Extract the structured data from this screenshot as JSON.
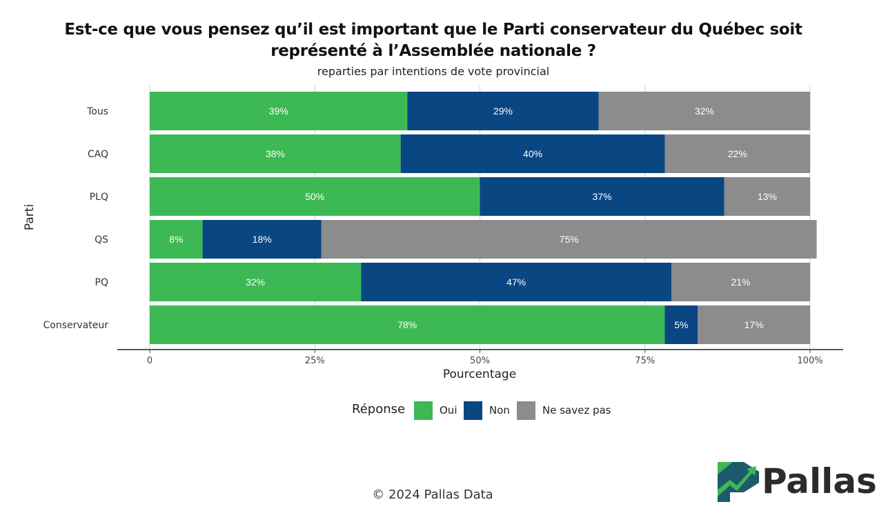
{
  "title_line1": "Est-ce que vous pensez qu’il est important que le Parti conservateur du Québec soit",
  "title_line2": "représenté à l’Assemblée nationale ?",
  "subtitle": "reparties par intentions de vote provincial",
  "footer": "© 2024 Pallas Data",
  "logo_text": "Pallas",
  "colors": {
    "Oui": "#3cb954",
    "Non": "#0a4682",
    "Ne savez pas": "#8c8c8c",
    "logo_green": "#3cb954",
    "logo_teal": "#1d5a6e"
  },
  "legend": {
    "title": "Réponse",
    "items": [
      "Oui",
      "Non",
      "Ne savez pas"
    ]
  },
  "chart_data": {
    "type": "bar",
    "orientation": "horizontal",
    "stacked": true,
    "categories": [
      "Tous",
      "CAQ",
      "PLQ",
      "QS",
      "PQ",
      "Conservateur"
    ],
    "series": [
      {
        "name": "Oui",
        "values": [
          39,
          38,
          50,
          8,
          32,
          78
        ]
      },
      {
        "name": "Non",
        "values": [
          29,
          40,
          37,
          18,
          47,
          5
        ]
      },
      {
        "name": "Ne savez pas",
        "values": [
          32,
          22,
          13,
          75,
          21,
          17
        ]
      }
    ],
    "data_labels": [
      [
        "39%",
        "38%",
        "50%",
        "8%",
        "32%",
        "78%"
      ],
      [
        "29%",
        "40%",
        "37%",
        "18%",
        "47%",
        "5%"
      ],
      [
        "32%",
        "22%",
        "13%",
        "75%",
        "21%",
        "17%"
      ]
    ],
    "xlabel": "Pourcentage",
    "ylabel": "Parti",
    "xlim": [
      0,
      100
    ],
    "x_ticks": [
      0,
      25,
      50,
      75,
      100
    ],
    "x_tick_labels": [
      "0",
      "25%",
      "50%",
      "75%",
      "100%"
    ],
    "grid": true,
    "legend_position": "bottom"
  }
}
